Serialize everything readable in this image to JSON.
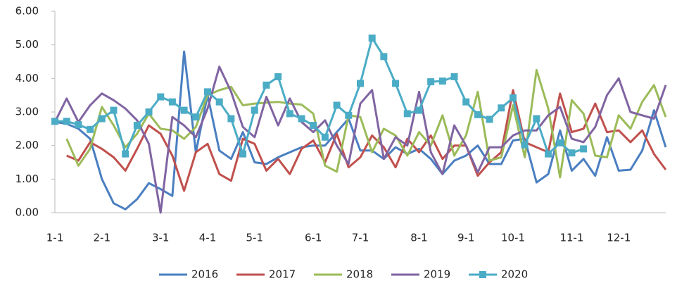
{
  "chart_data": {
    "type": "line",
    "categories": [
      "1-1",
      null,
      null,
      null,
      "2-1",
      null,
      null,
      null,
      null,
      "3-1",
      null,
      null,
      null,
      "4-1",
      null,
      null,
      null,
      "5-1",
      null,
      null,
      null,
      null,
      "6-1",
      null,
      null,
      null,
      "7-1",
      null,
      null,
      null,
      null,
      "8-1",
      null,
      null,
      null,
      "9-1",
      null,
      null,
      null,
      "10-1",
      null,
      null,
      null,
      null,
      "11-1",
      null,
      null,
      null,
      "12-1",
      null,
      null,
      null,
      null
    ],
    "series": [
      {
        "name": "2016",
        "color": "#4a7fc1",
        "values": [
          2.7,
          2.65,
          2.5,
          2.2,
          1.0,
          0.28,
          0.1,
          0.4,
          0.88,
          0.7,
          0.5,
          4.8,
          1.8,
          3.5,
          1.85,
          1.6,
          2.4,
          1.5,
          1.45,
          1.65,
          1.8,
          1.95,
          2.0,
          2.0,
          2.4,
          2.8,
          1.85,
          1.85,
          1.6,
          1.95,
          1.75,
          1.9,
          1.6,
          1.15,
          1.55,
          1.7,
          2.0,
          1.45,
          1.45,
          2.15,
          2.2,
          0.9,
          1.15,
          2.45,
          1.25,
          1.6,
          1.1,
          2.25,
          1.25,
          1.28,
          1.85,
          3.05,
          1.95
        ]
      },
      {
        "name": "2017",
        "color": "#c0504d",
        "values": [
          null,
          1.7,
          1.55,
          2.1,
          1.9,
          1.65,
          1.25,
          1.9,
          2.6,
          2.35,
          1.7,
          0.65,
          1.8,
          2.05,
          1.15,
          0.95,
          2.2,
          2.05,
          1.25,
          1.6,
          1.15,
          1.9,
          2.15,
          1.5,
          2.35,
          1.35,
          1.65,
          2.3,
          1.95,
          1.35,
          2.2,
          1.8,
          2.3,
          1.6,
          2.0,
          2.0,
          1.1,
          1.5,
          1.8,
          3.65,
          2.1,
          1.95,
          1.8,
          3.55,
          2.4,
          2.5,
          3.25,
          2.4,
          2.45,
          2.1,
          2.45,
          1.75,
          1.28
        ]
      },
      {
        "name": "2018",
        "color": "#9bbb59",
        "values": [
          null,
          2.2,
          1.4,
          1.9,
          3.15,
          2.6,
          1.95,
          2.35,
          2.95,
          2.5,
          2.45,
          2.2,
          2.55,
          3.5,
          3.65,
          3.75,
          3.2,
          3.25,
          3.28,
          3.3,
          3.25,
          3.22,
          2.95,
          1.4,
          1.22,
          2.9,
          2.85,
          1.8,
          2.5,
          2.3,
          1.7,
          2.4,
          2.0,
          2.9,
          1.7,
          2.3,
          3.6,
          1.55,
          1.65,
          3.2,
          1.65,
          4.25,
          3.1,
          1.05,
          3.35,
          2.95,
          1.7,
          1.65,
          2.9,
          2.5,
          3.3,
          3.8,
          2.85
        ]
      },
      {
        "name": "2019",
        "color": "#8064a2",
        "values": [
          2.7,
          3.4,
          2.7,
          3.2,
          3.55,
          3.35,
          3.1,
          2.75,
          2.05,
          0.0,
          2.85,
          2.6,
          2.25,
          3.1,
          4.35,
          3.6,
          2.55,
          2.25,
          3.45,
          2.6,
          3.4,
          2.7,
          2.4,
          2.75,
          2.0,
          1.45,
          3.25,
          3.65,
          1.6,
          2.25,
          2.0,
          3.6,
          1.8,
          1.15,
          2.6,
          2.0,
          1.2,
          1.95,
          1.95,
          2.3,
          2.45,
          2.45,
          2.9,
          3.15,
          2.2,
          2.1,
          2.55,
          3.5,
          4.0,
          3.0,
          2.9,
          2.8,
          3.8
        ]
      },
      {
        "name": "2020",
        "color": "#4bacc6",
        "marker": "square",
        "values": [
          2.72,
          2.72,
          2.62,
          2.48,
          2.8,
          3.05,
          1.75,
          2.6,
          3.0,
          3.45,
          3.3,
          3.05,
          2.85,
          3.6,
          3.3,
          2.8,
          1.75,
          3.05,
          3.8,
          4.05,
          2.95,
          2.8,
          2.6,
          2.25,
          3.2,
          2.9,
          3.85,
          5.2,
          4.65,
          3.85,
          2.95,
          3.05,
          3.9,
          3.92,
          4.05,
          3.3,
          2.92,
          2.78,
          3.12,
          3.42,
          2.02,
          2.8,
          1.75,
          2.08,
          1.78,
          1.9,
          null,
          null,
          null,
          null,
          null,
          null,
          null
        ]
      }
    ],
    "ylim": [
      0,
      6
    ],
    "yticks": [
      {
        "value": 0,
        "label": "0.00"
      },
      {
        "value": 1,
        "label": "1.00"
      },
      {
        "value": 2,
        "label": "2.00"
      },
      {
        "value": 3,
        "label": "3.00"
      },
      {
        "value": 4,
        "label": "4.00"
      },
      {
        "value": 5,
        "label": "5.00"
      },
      {
        "value": 6,
        "label": "6.00"
      }
    ],
    "grid": false,
    "legend": "bottom"
  }
}
